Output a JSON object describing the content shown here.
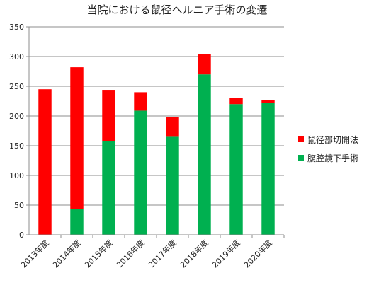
{
  "chart_data": {
    "type": "bar",
    "stacked": true,
    "title": "当院における鼠径ヘルニア手術の変遷",
    "categories": [
      "2013年度",
      "2014年度",
      "2015年度",
      "2016年度",
      "2017年度",
      "2018年度",
      "2019年度",
      "2020年度"
    ],
    "series": [
      {
        "name": "腹腔鏡下手術",
        "color": "#00b050",
        "values": [
          0,
          43,
          158,
          209,
          165,
          270,
          220,
          222
        ]
      },
      {
        "name": "鼠径部切開法",
        "color": "#ff0000",
        "values": [
          245,
          239,
          86,
          31,
          33,
          34,
          10,
          5
        ]
      }
    ],
    "ylim": [
      0,
      350
    ],
    "yticks": [
      0,
      50,
      100,
      150,
      200,
      250,
      300,
      350
    ],
    "grid": true,
    "legend_position": "right",
    "legend_order": [
      "鼠径部切開法",
      "腹腔鏡下手術"
    ]
  }
}
